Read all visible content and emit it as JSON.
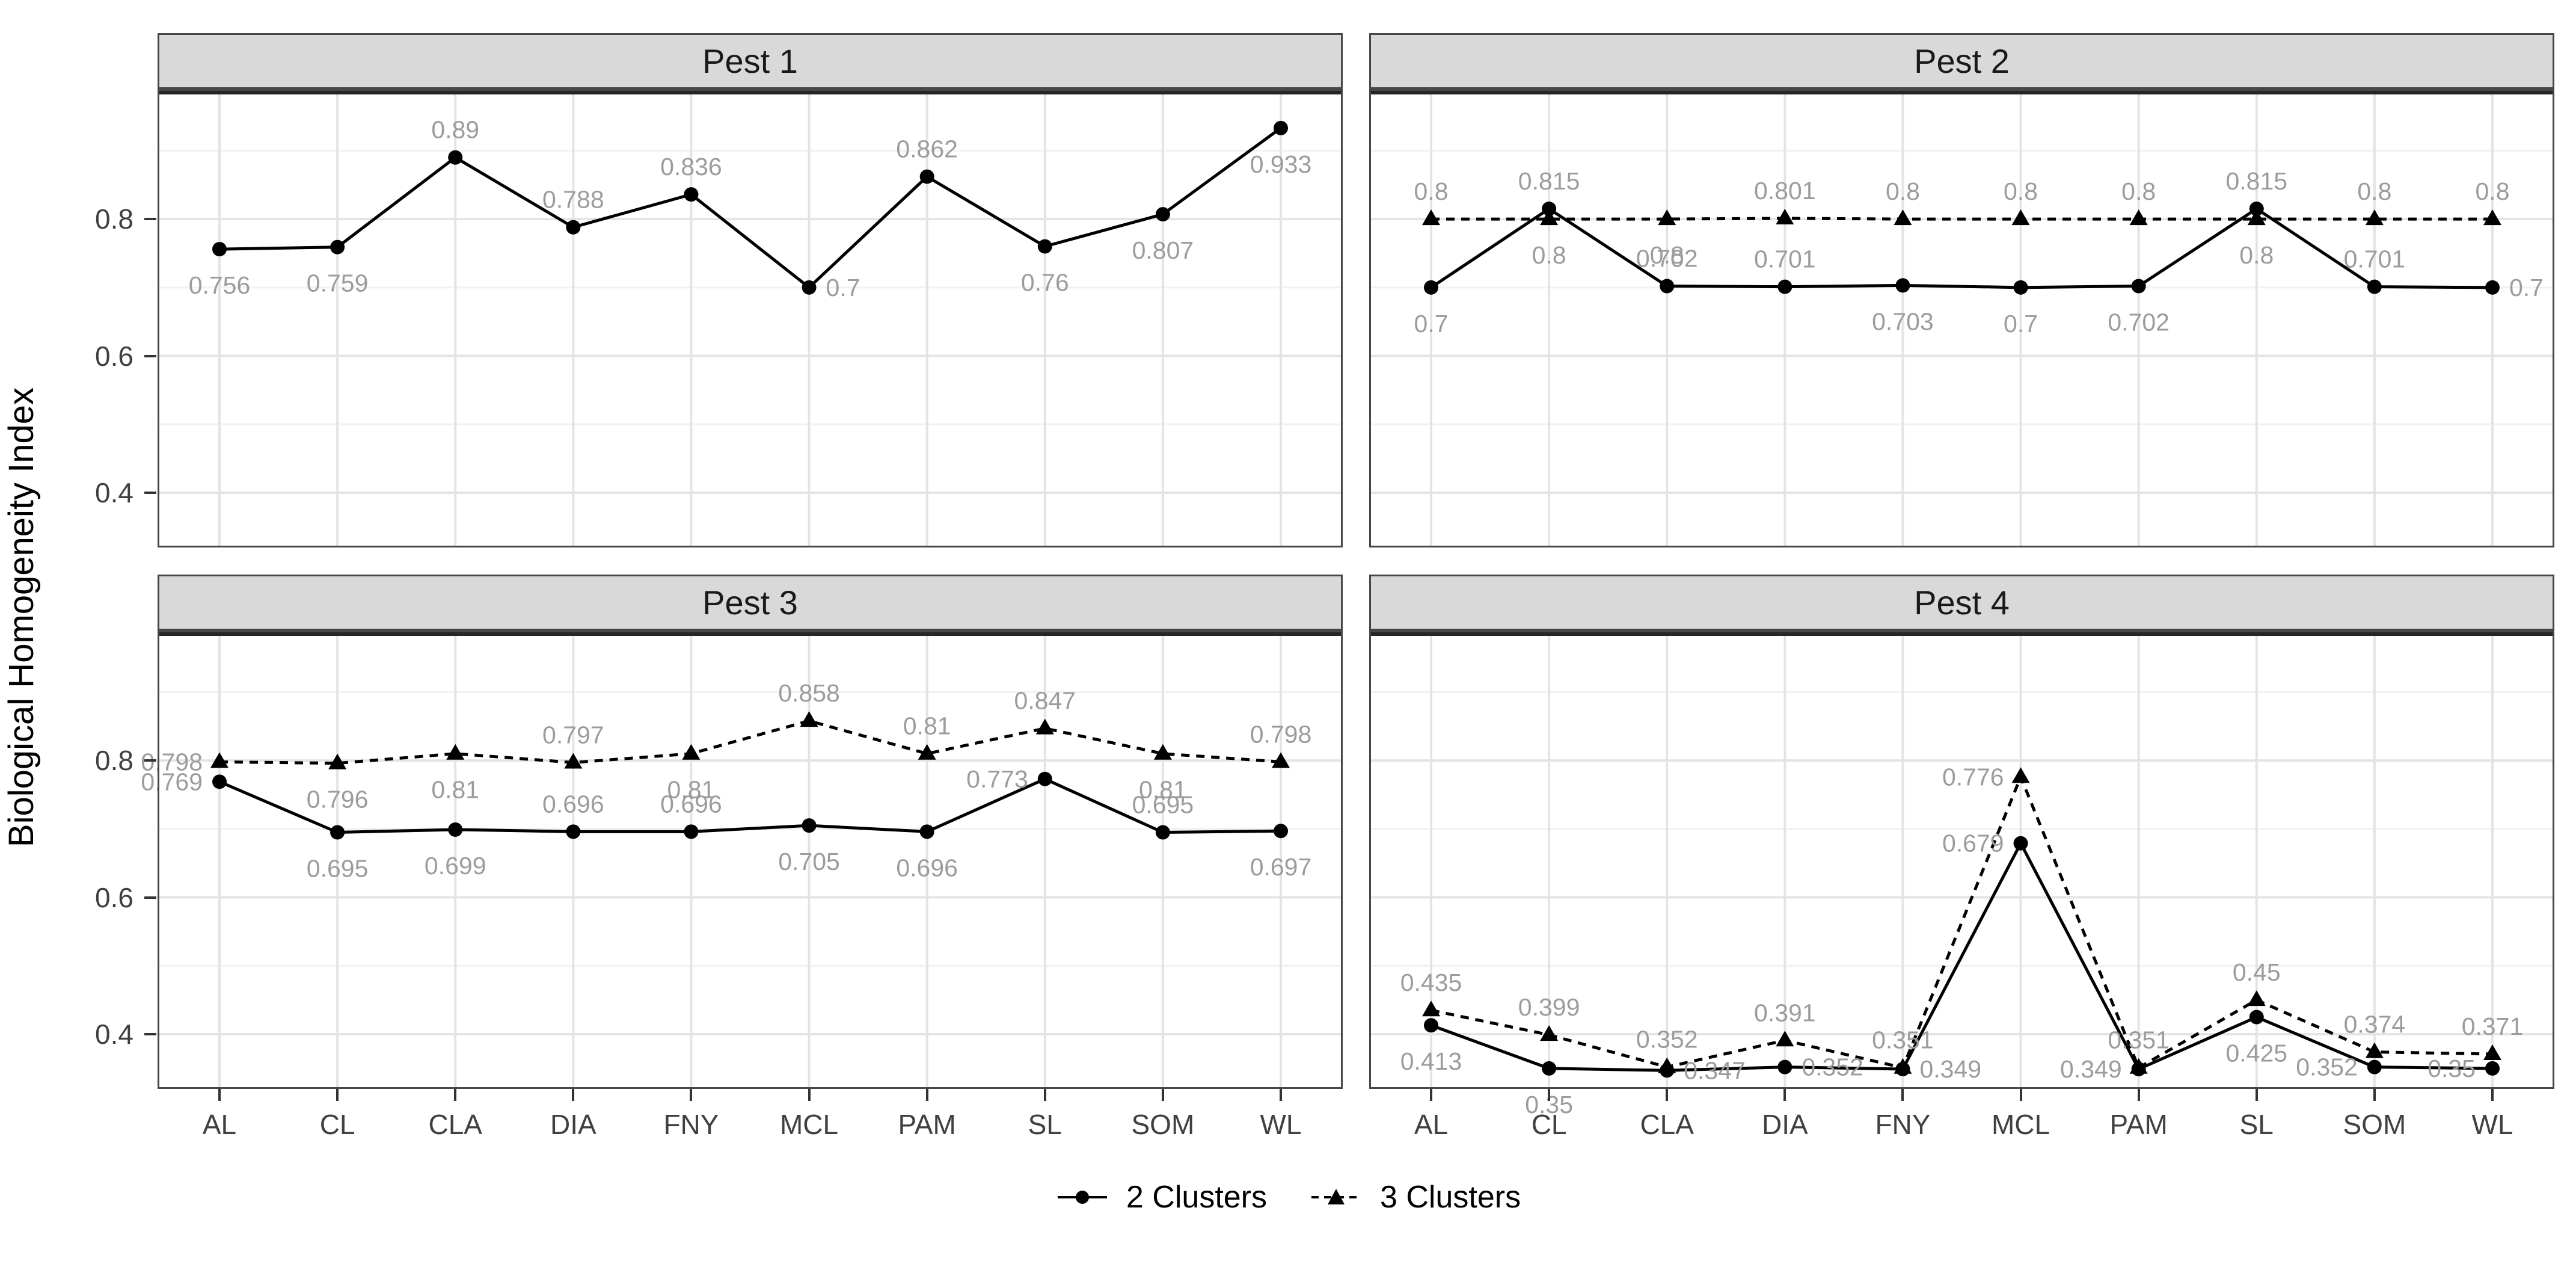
{
  "figure": {
    "y_axis_title": "Biological Homogeneity Index",
    "legend": [
      {
        "label": "2 Clusters",
        "marker": "circle",
        "line": "solid"
      },
      {
        "label": "3 Clusters",
        "marker": "triangle",
        "line": "dashed"
      }
    ],
    "colors": {
      "series": "#000000",
      "data_label": "#9c9c9c",
      "strip_bg": "#d9d9d9",
      "strip_border": "#474747",
      "panel_border": "#474747",
      "panel_top_bar": "#262626",
      "grid_major": "#e4e4e4",
      "grid_minor": "#f1f1f1",
      "tick_text": "#404040"
    }
  },
  "chart_data": [
    {
      "panel": "Pest 1",
      "type": "line",
      "categories": [
        "AL",
        "CL",
        "CLA",
        "DIA",
        "FNY",
        "MCL",
        "PAM",
        "SL",
        "SOM",
        "WL"
      ],
      "ylim": [
        0.32,
        0.99
      ],
      "yticks": [
        0.4,
        0.6,
        0.8
      ],
      "ytick_labels": [
        "0.4",
        "0.6",
        "0.8"
      ],
      "xlabel": "",
      "ylabel": "Biological Homogeneity Index",
      "series": [
        {
          "name": "2 Clusters",
          "marker": "circle",
          "linestyle": "solid",
          "values": [
            0.756,
            0.759,
            0.89,
            0.788,
            0.836,
            0.7,
            0.862,
            0.76,
            0.807,
            0.933
          ],
          "labels": [
            "0.756",
            "0.759",
            "0.89",
            "0.788",
            "0.836",
            "0.7",
            "0.862",
            "0.76",
            "0.807",
            "0.933"
          ]
        }
      ]
    },
    {
      "panel": "Pest 2",
      "type": "line",
      "categories": [
        "AL",
        "CL",
        "CLA",
        "DIA",
        "FNY",
        "MCL",
        "PAM",
        "SL",
        "SOM",
        "WL"
      ],
      "ylim": [
        0.32,
        0.99
      ],
      "yticks": [
        0.4,
        0.6,
        0.8
      ],
      "ytick_labels": [
        "0.4",
        "0.6",
        "0.8"
      ],
      "xlabel": "",
      "ylabel": "Biological Homogeneity Index",
      "series": [
        {
          "name": "2 Clusters",
          "marker": "circle",
          "linestyle": "solid",
          "values": [
            0.7,
            0.815,
            0.702,
            0.701,
            0.703,
            0.7,
            0.702,
            0.815,
            0.701,
            0.7
          ],
          "labels": [
            "0.7",
            "0.815",
            "0.702",
            "0.701",
            "0.703",
            "0.7",
            "0.702",
            "0.815",
            "0.701",
            "0.7"
          ]
        },
        {
          "name": "3 Clusters",
          "marker": "triangle",
          "linestyle": "dashed",
          "values": [
            0.8,
            0.8,
            0.8,
            0.801,
            0.8,
            0.8,
            0.8,
            0.8,
            0.8,
            0.8
          ],
          "labels": [
            "0.8",
            "0.8",
            "0.8",
            "0.801",
            "0.8",
            "0.8",
            "0.8",
            "0.8",
            "0.8",
            "0.8"
          ]
        }
      ]
    },
    {
      "panel": "Pest 3",
      "type": "line",
      "categories": [
        "AL",
        "CL",
        "CLA",
        "DIA",
        "FNY",
        "MCL",
        "PAM",
        "SL",
        "SOM",
        "WL"
      ],
      "ylim": [
        0.32,
        0.99
      ],
      "yticks": [
        0.4,
        0.6,
        0.8
      ],
      "ytick_labels": [
        "0.4",
        "0.6",
        "0.8"
      ],
      "xlabel": "",
      "ylabel": "Biological Homogeneity Index",
      "series": [
        {
          "name": "2 Clusters",
          "marker": "circle",
          "linestyle": "solid",
          "values": [
            0.769,
            0.695,
            0.699,
            0.696,
            0.696,
            0.705,
            0.696,
            0.773,
            0.695,
            0.697
          ],
          "labels": [
            "0.769",
            "0.695",
            "0.699",
            "0.696",
            "0.696",
            "0.705",
            "0.696",
            "0.773",
            "0.695",
            "0.697"
          ]
        },
        {
          "name": "3 Clusters",
          "marker": "triangle",
          "linestyle": "dashed",
          "values": [
            0.798,
            0.796,
            0.81,
            0.797,
            0.81,
            0.858,
            0.81,
            0.847,
            0.81,
            0.798
          ],
          "labels": [
            "0.798",
            "0.796",
            "0.81",
            "0.797",
            "0.81",
            "0.858",
            "0.81",
            "0.847",
            "0.81",
            "0.798"
          ]
        }
      ]
    },
    {
      "panel": "Pest 4",
      "type": "line",
      "categories": [
        "AL",
        "CL",
        "CLA",
        "DIA",
        "FNY",
        "MCL",
        "PAM",
        "SL",
        "SOM",
        "WL"
      ],
      "ylim": [
        0.32,
        0.99
      ],
      "yticks": [
        0.4,
        0.6,
        0.8
      ],
      "ytick_labels": [
        "0.4",
        "0.6",
        "0.8"
      ],
      "xlabel": "",
      "ylabel": "Biological Homogeneity Index",
      "series": [
        {
          "name": "2 Clusters",
          "marker": "circle",
          "linestyle": "solid",
          "values": [
            0.413,
            0.35,
            0.347,
            0.352,
            0.349,
            0.679,
            0.349,
            0.425,
            0.352,
            0.35
          ],
          "labels": [
            "0.413",
            "0.35",
            "0.347",
            "0.352",
            "0.349",
            "0.679",
            "0.349",
            "0.425",
            "0.352",
            "0.35"
          ]
        },
        {
          "name": "3 Clusters",
          "marker": "triangle",
          "linestyle": "dashed",
          "values": [
            0.435,
            0.399,
            0.352,
            0.391,
            0.351,
            0.776,
            0.351,
            0.45,
            0.374,
            0.371
          ],
          "labels": [
            "0.435",
            "0.399",
            "0.352",
            "0.391",
            "0.351",
            "0.776",
            "0.351",
            "0.45",
            "0.374",
            "0.371"
          ]
        }
      ]
    }
  ]
}
